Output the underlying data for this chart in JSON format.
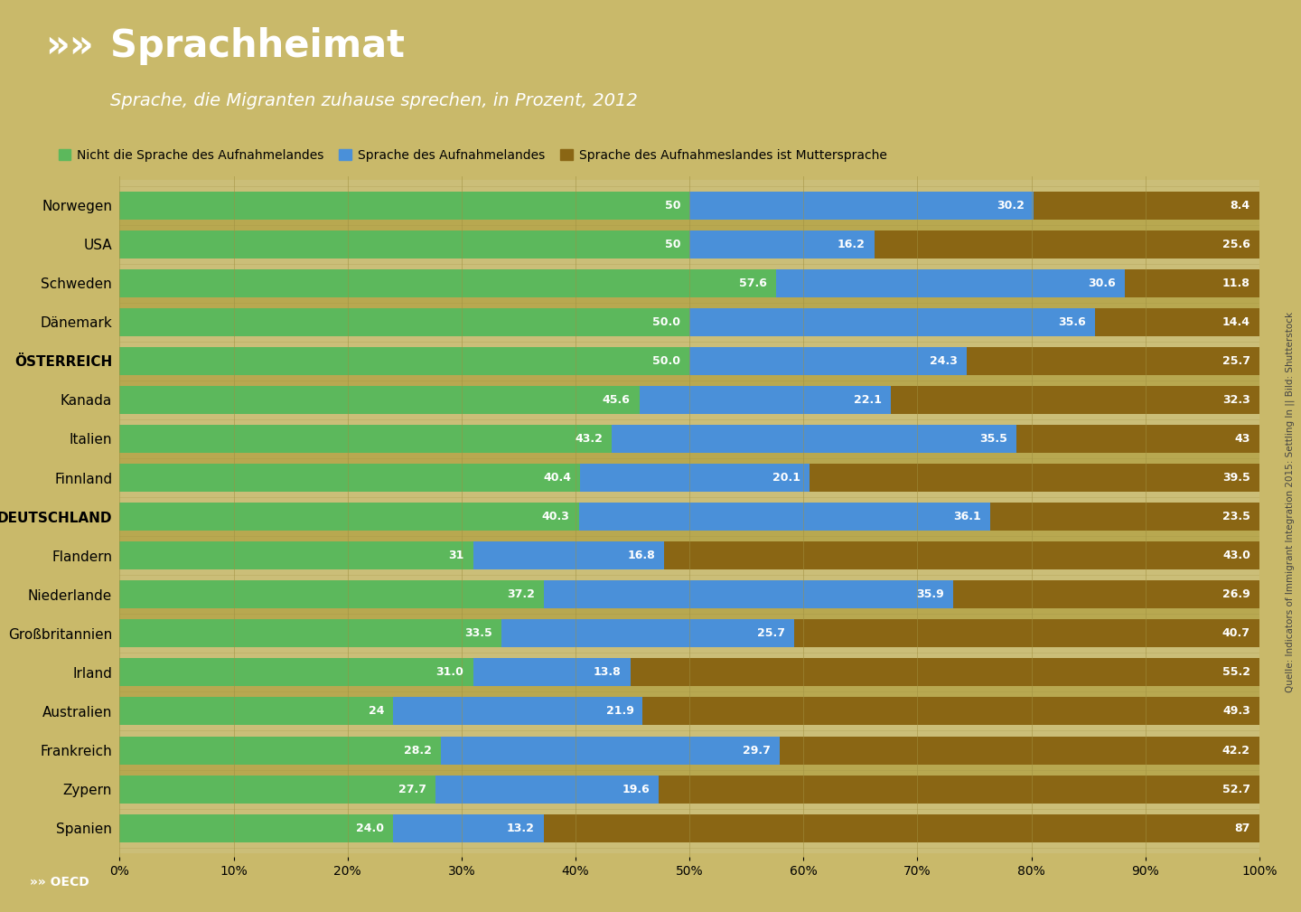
{
  "title": "Sprachheimat",
  "subtitle": "Sprache, die Migranten zuhause sprechen, in Prozent, 2012",
  "header_bg": "#4a9a3f",
  "chart_bg": "#c9b96a",
  "row_bg_even": "#cbbe78",
  "row_bg_odd": "#b8a850",
  "countries": [
    "Norwegen",
    "USA",
    "Schweden",
    "Dänemark",
    "ÖSTERREICH",
    "Kanada",
    "Italien",
    "Finnland",
    "DEUTSCHLAND",
    "Flandern",
    "Niederlande",
    "Großbritannien",
    "Irland",
    "Australien",
    "Frankreich",
    "Zypern",
    "Spanien"
  ],
  "bold_countries": [
    "DEUTSCHLAND",
    "ÖSTERREICH"
  ],
  "green_vals": [
    50.0,
    50.0,
    57.6,
    50.0,
    50.0,
    45.6,
    43.2,
    40.4,
    40.3,
    31.0,
    37.2,
    33.5,
    31.0,
    24.0,
    28.2,
    27.7,
    24.0
  ],
  "blue_vals": [
    30.2,
    16.2,
    30.6,
    35.6,
    24.3,
    22.1,
    35.5,
    20.1,
    36.1,
    16.8,
    35.9,
    25.7,
    13.8,
    21.9,
    29.7,
    19.6,
    13.2
  ],
  "brown_vals_label": [
    8.4,
    25.6,
    11.8,
    14.4,
    25.7,
    32.3,
    43.0,
    39.5,
    23.5,
    43.0,
    26.9,
    40.7,
    55.2,
    49.3,
    42.2,
    52.7,
    87.0
  ],
  "green_label_vals": [
    "50",
    "50",
    "57.6",
    "50.0",
    "50.0",
    "45.6",
    "43.2",
    "40.4",
    "40.3",
    "31",
    "37.2",
    "33.5",
    "31.0",
    "24",
    "28.2",
    "27.7",
    "24.0"
  ],
  "blue_label_vals": [
    "30.2",
    "16.2",
    "30.6",
    "35.6",
    "24.3",
    "22.1",
    "35.5",
    "20.1",
    "36.1",
    "16.8",
    "35.9",
    "25.7",
    "13.8",
    "21.9",
    "29.7",
    "19.6",
    "13.2"
  ],
  "brown_label_vals": [
    "8.4",
    "25.6",
    "11.8",
    "14.4",
    "25.7",
    "32.3",
    "43",
    "39.5",
    "23.5",
    "43.0",
    "26.9",
    "40.7",
    "55.2",
    "49.3",
    "42.2",
    "52.7",
    "87"
  ],
  "green_color": "#5cb85c",
  "blue_color": "#4a90d9",
  "brown_color": "#8a6614",
  "legend_labels": [
    "Nicht die Sprache des Aufnahmelandes",
    "Sprache des Aufnahmelandes",
    "Sprache des Aufnahmeslandes ist Muttersprache"
  ],
  "xlabel_ticks": [
    0,
    10,
    20,
    30,
    40,
    50,
    60,
    70,
    80,
    90,
    100
  ],
  "source_text": "Quelle: Indicators of Immigrant Integration 2015: Settling In || Bild: Shutterstock"
}
